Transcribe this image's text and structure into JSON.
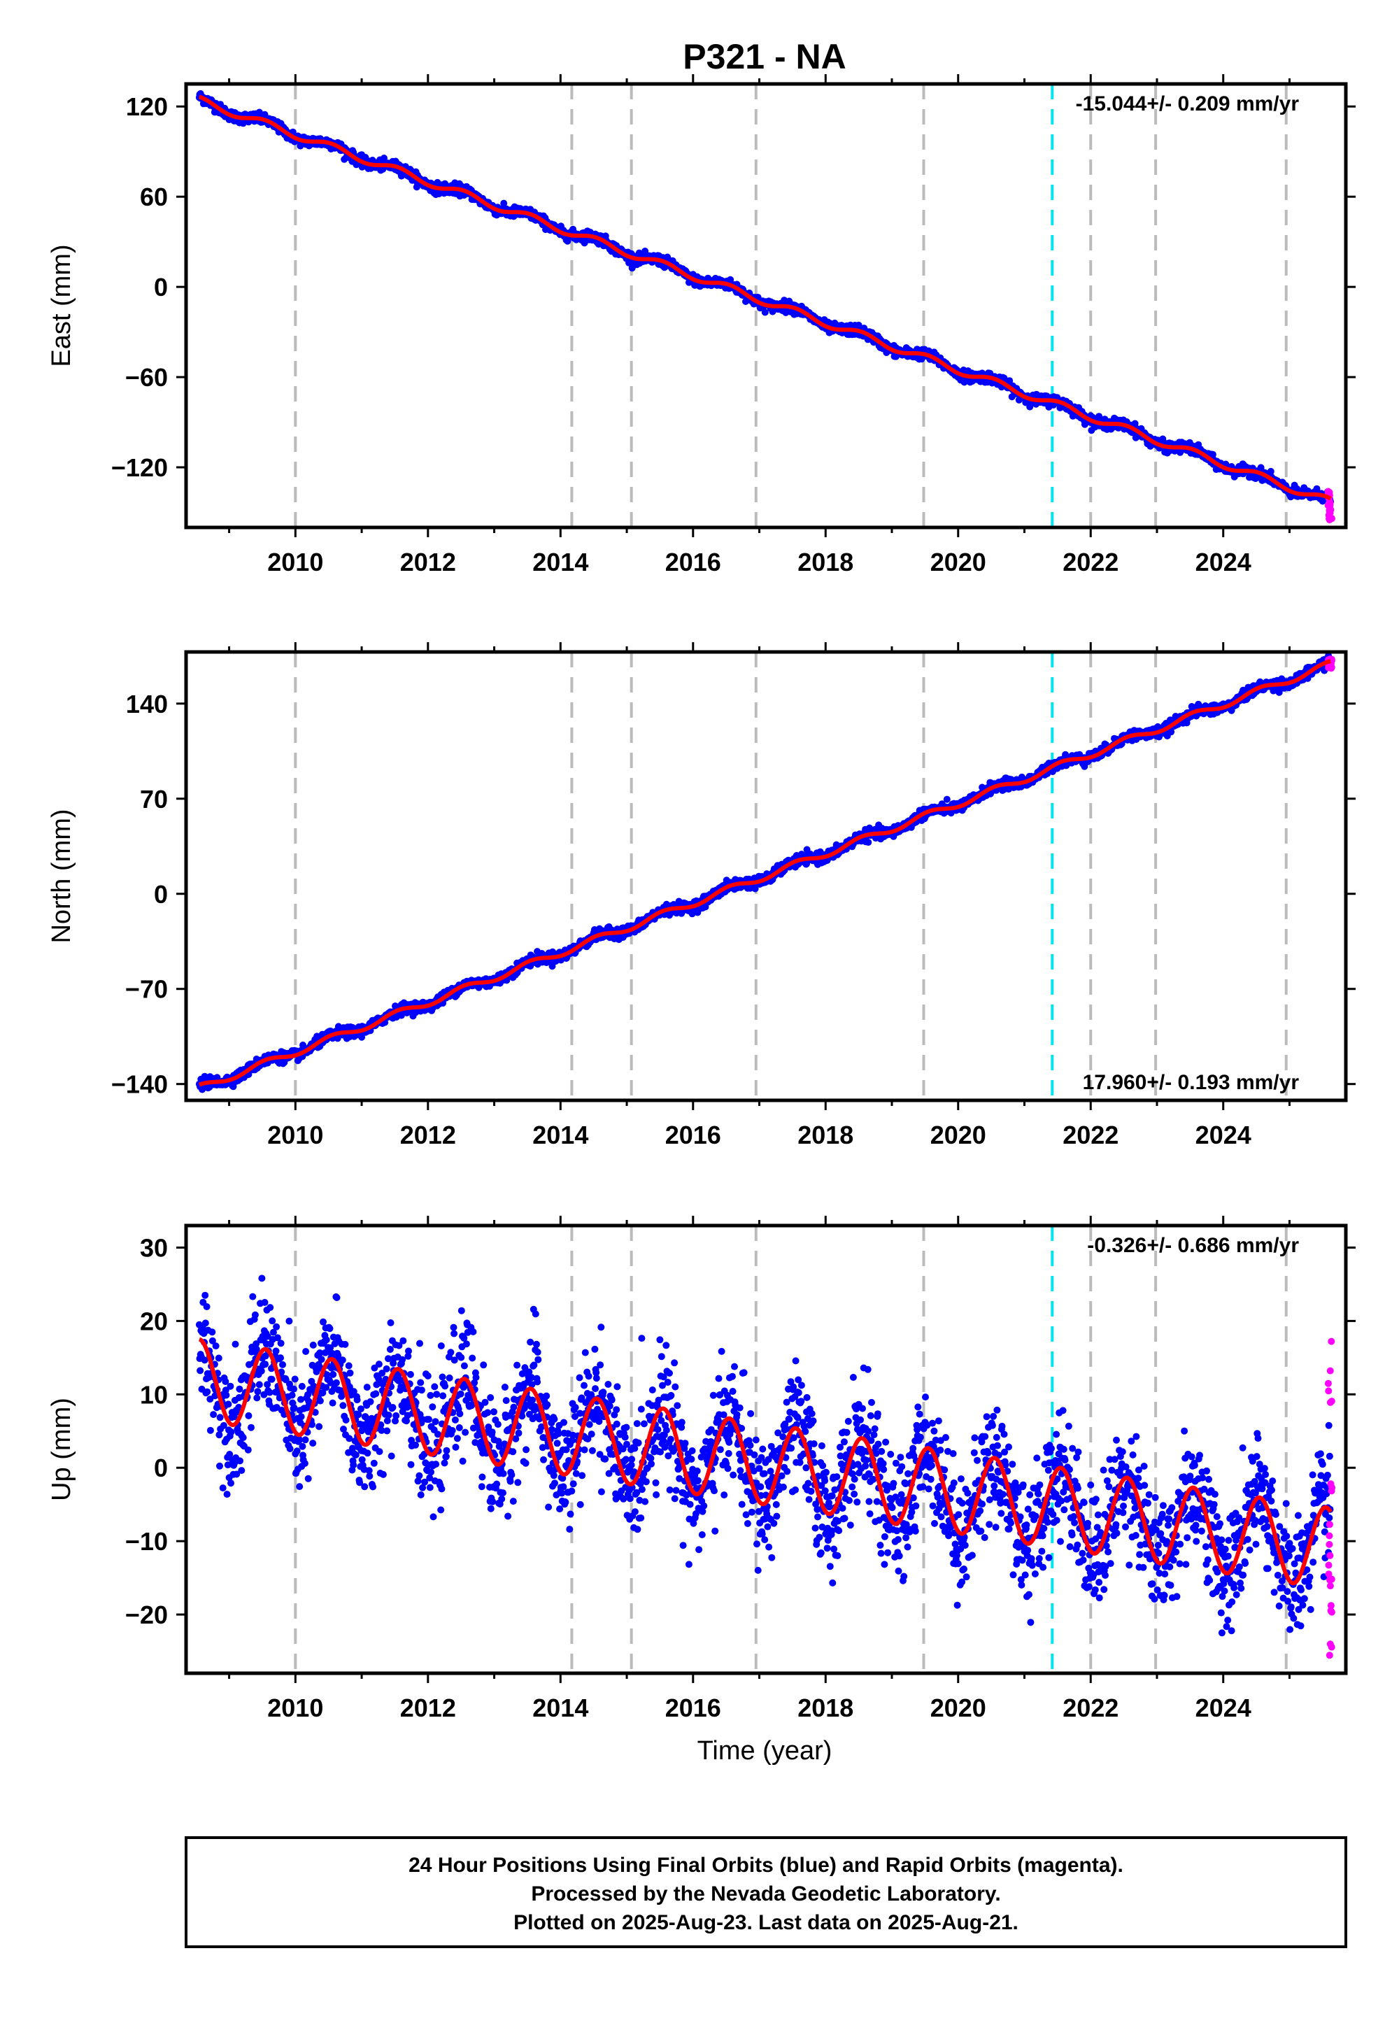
{
  "title": "P321 - NA",
  "x_axis_label": "Time (year)",
  "footer": {
    "lines": [
      "24 Hour Positions Using Final Orbits (blue) and Rapid Orbits (magenta).",
      "Processed by the Nevada Geodetic Laboratory.",
      "Plotted on 2025-Aug-23. Last data on 2025-Aug-21."
    ]
  },
  "colors": {
    "final_orbits": "#0000ff",
    "rapid_orbits": "#ff00ff",
    "model_fit": "#ff0000",
    "equipment_change": "#bbbbbb",
    "earthquake_marker": "#00e5ee",
    "frame": "#000000"
  },
  "chart_data": [
    {
      "type": "scatter",
      "ylabel": "East (mm)",
      "rate": "-15.044+/- 0.209 mm/yr",
      "rate_position": "top-right",
      "xlim": [
        2008.35,
        2025.85
      ],
      "ylim": [
        -160,
        135
      ],
      "x_ticks": [
        2010,
        2012,
        2014,
        2016,
        2018,
        2020,
        2022,
        2024
      ],
      "x_tick_labels": [
        "2010",
        "2012",
        "2014",
        "2016",
        "2018",
        "2020",
        "2022",
        "2024"
      ],
      "y_ticks": [
        120,
        60,
        0,
        -60,
        -120
      ],
      "y_tick_labels": [
        "120",
        "60",
        "0",
        "−60",
        "−120"
      ],
      "gray_dashed_lines": [
        2010.0,
        2014.17,
        2015.07,
        2016.95,
        2019.48,
        2022.0,
        2022.98,
        2024.95
      ],
      "cyan_dashed_lines": [
        2021.42
      ],
      "model": {
        "start_year": 2008.55,
        "end_year": 2025.62,
        "start_value": 124.0,
        "end_value": -143.0,
        "seasonal_amplitude": 2.5,
        "scatter": 1.7
      },
      "rapid": {
        "start_year": 2025.58,
        "end_year": 2025.64,
        "values_range": [
          -155,
          -136
        ]
      }
    },
    {
      "type": "scatter",
      "ylabel": "North (mm)",
      "rate": "17.960+/- 0.193 mm/yr",
      "rate_position": "bottom-right",
      "xlim": [
        2008.35,
        2025.85
      ],
      "ylim": [
        -152,
        178
      ],
      "x_ticks": [
        2010,
        2012,
        2014,
        2016,
        2018,
        2020,
        2022,
        2024
      ],
      "x_tick_labels": [
        "2010",
        "2012",
        "2014",
        "2016",
        "2018",
        "2020",
        "2022",
        "2024"
      ],
      "y_ticks": [
        140,
        70,
        0,
        -70,
        -140
      ],
      "y_tick_labels": [
        "140",
        "70",
        "0",
        "−70",
        "−140"
      ],
      "gray_dashed_lines": [
        2010.0,
        2014.17,
        2015.07,
        2016.95,
        2019.48,
        2022.0,
        2022.98,
        2024.95
      ],
      "cyan_dashed_lines": [
        2021.42
      ],
      "model": {
        "start_year": 2008.55,
        "end_year": 2025.62,
        "start_value": -143.0,
        "end_value": 169.0,
        "seasonal_amplitude": 2.5,
        "scatter": 1.9
      },
      "rapid": {
        "start_year": 2025.58,
        "end_year": 2025.64,
        "values_range": [
          166,
          173
        ]
      }
    },
    {
      "type": "scatter",
      "ylabel": "Up (mm)",
      "rate": "-0.326+/- 0.686 mm/yr",
      "rate_position": "top-right",
      "xlim": [
        2008.35,
        2025.85
      ],
      "ylim": [
        -28,
        33
      ],
      "x_ticks": [
        2010,
        2012,
        2014,
        2016,
        2018,
        2020,
        2022,
        2024
      ],
      "x_tick_labels": [
        "2010",
        "2012",
        "2014",
        "2016",
        "2018",
        "2020",
        "2022",
        "2024"
      ],
      "y_ticks": [
        30,
        20,
        10,
        0,
        -10,
        -20
      ],
      "y_tick_labels": [
        "30",
        "20",
        "10",
        "0",
        "−10",
        "−20"
      ],
      "gray_dashed_lines": [
        2010.0,
        2014.17,
        2015.07,
        2016.95,
        2019.48,
        2022.0,
        2022.98,
        2024.95
      ],
      "cyan_dashed_lines": [
        2021.42
      ],
      "model": {
        "start_year": 2008.55,
        "end_year": 2025.62,
        "start_value": 12.0,
        "end_value": -11.0,
        "seasonal_amplitude": 5.5,
        "scatter": 4.0
      },
      "rapid": {
        "start_year": 2025.58,
        "end_year": 2025.64,
        "values_range": [
          -26,
          19
        ]
      }
    }
  ]
}
